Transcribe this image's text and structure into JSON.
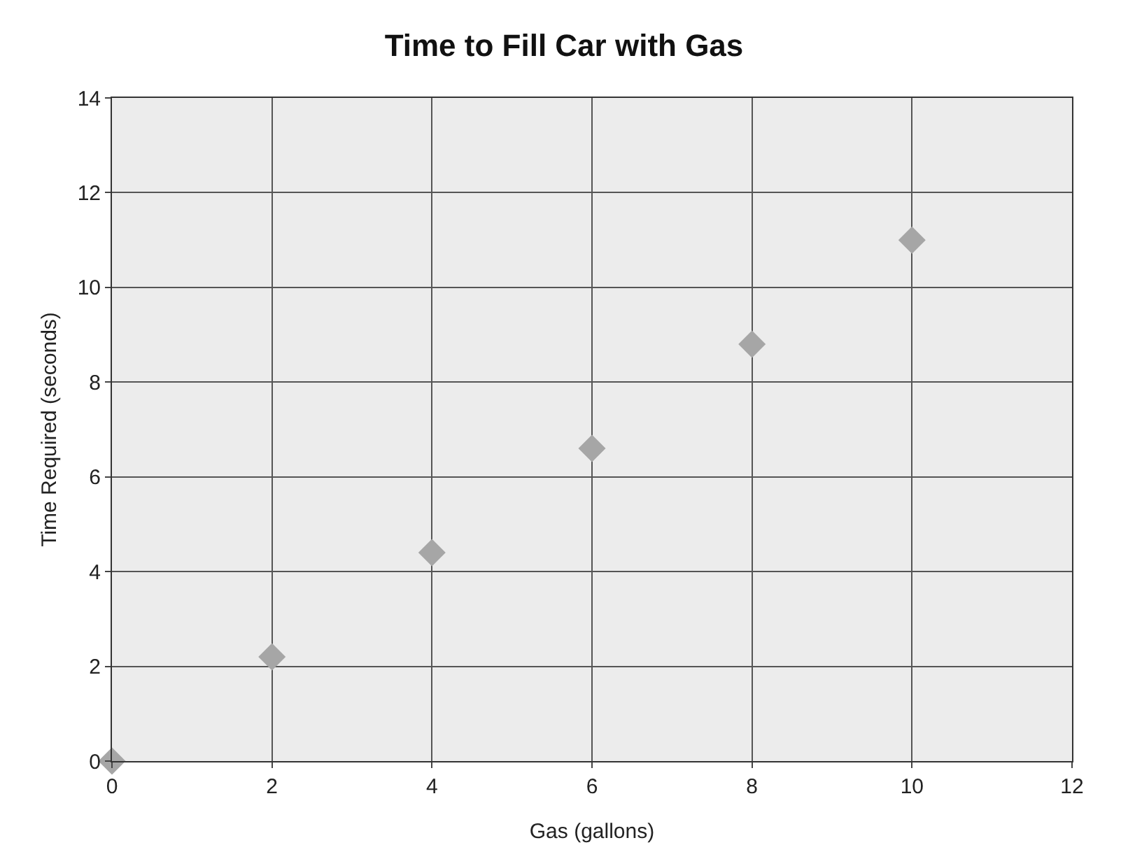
{
  "chart_data": {
    "type": "scatter",
    "title": "Time to Fill Car with Gas",
    "xlabel": "Gas (gallons)",
    "ylabel": "Time Required (seconds)",
    "x": [
      0,
      2,
      4,
      6,
      8,
      10
    ],
    "series": [
      {
        "color": "#a6a6a6",
        "values": [
          0,
          2.2,
          4.4,
          6.6,
          8.8,
          11
        ]
      }
    ],
    "xlim": [
      0,
      12
    ],
    "xticks": [
      0,
      2,
      4,
      6,
      8,
      10,
      12
    ],
    "ylim": [
      0,
      14
    ],
    "yticks": [
      0,
      2,
      4,
      6,
      8,
      10,
      12,
      14
    ],
    "grid": true,
    "marker": "diamond"
  }
}
